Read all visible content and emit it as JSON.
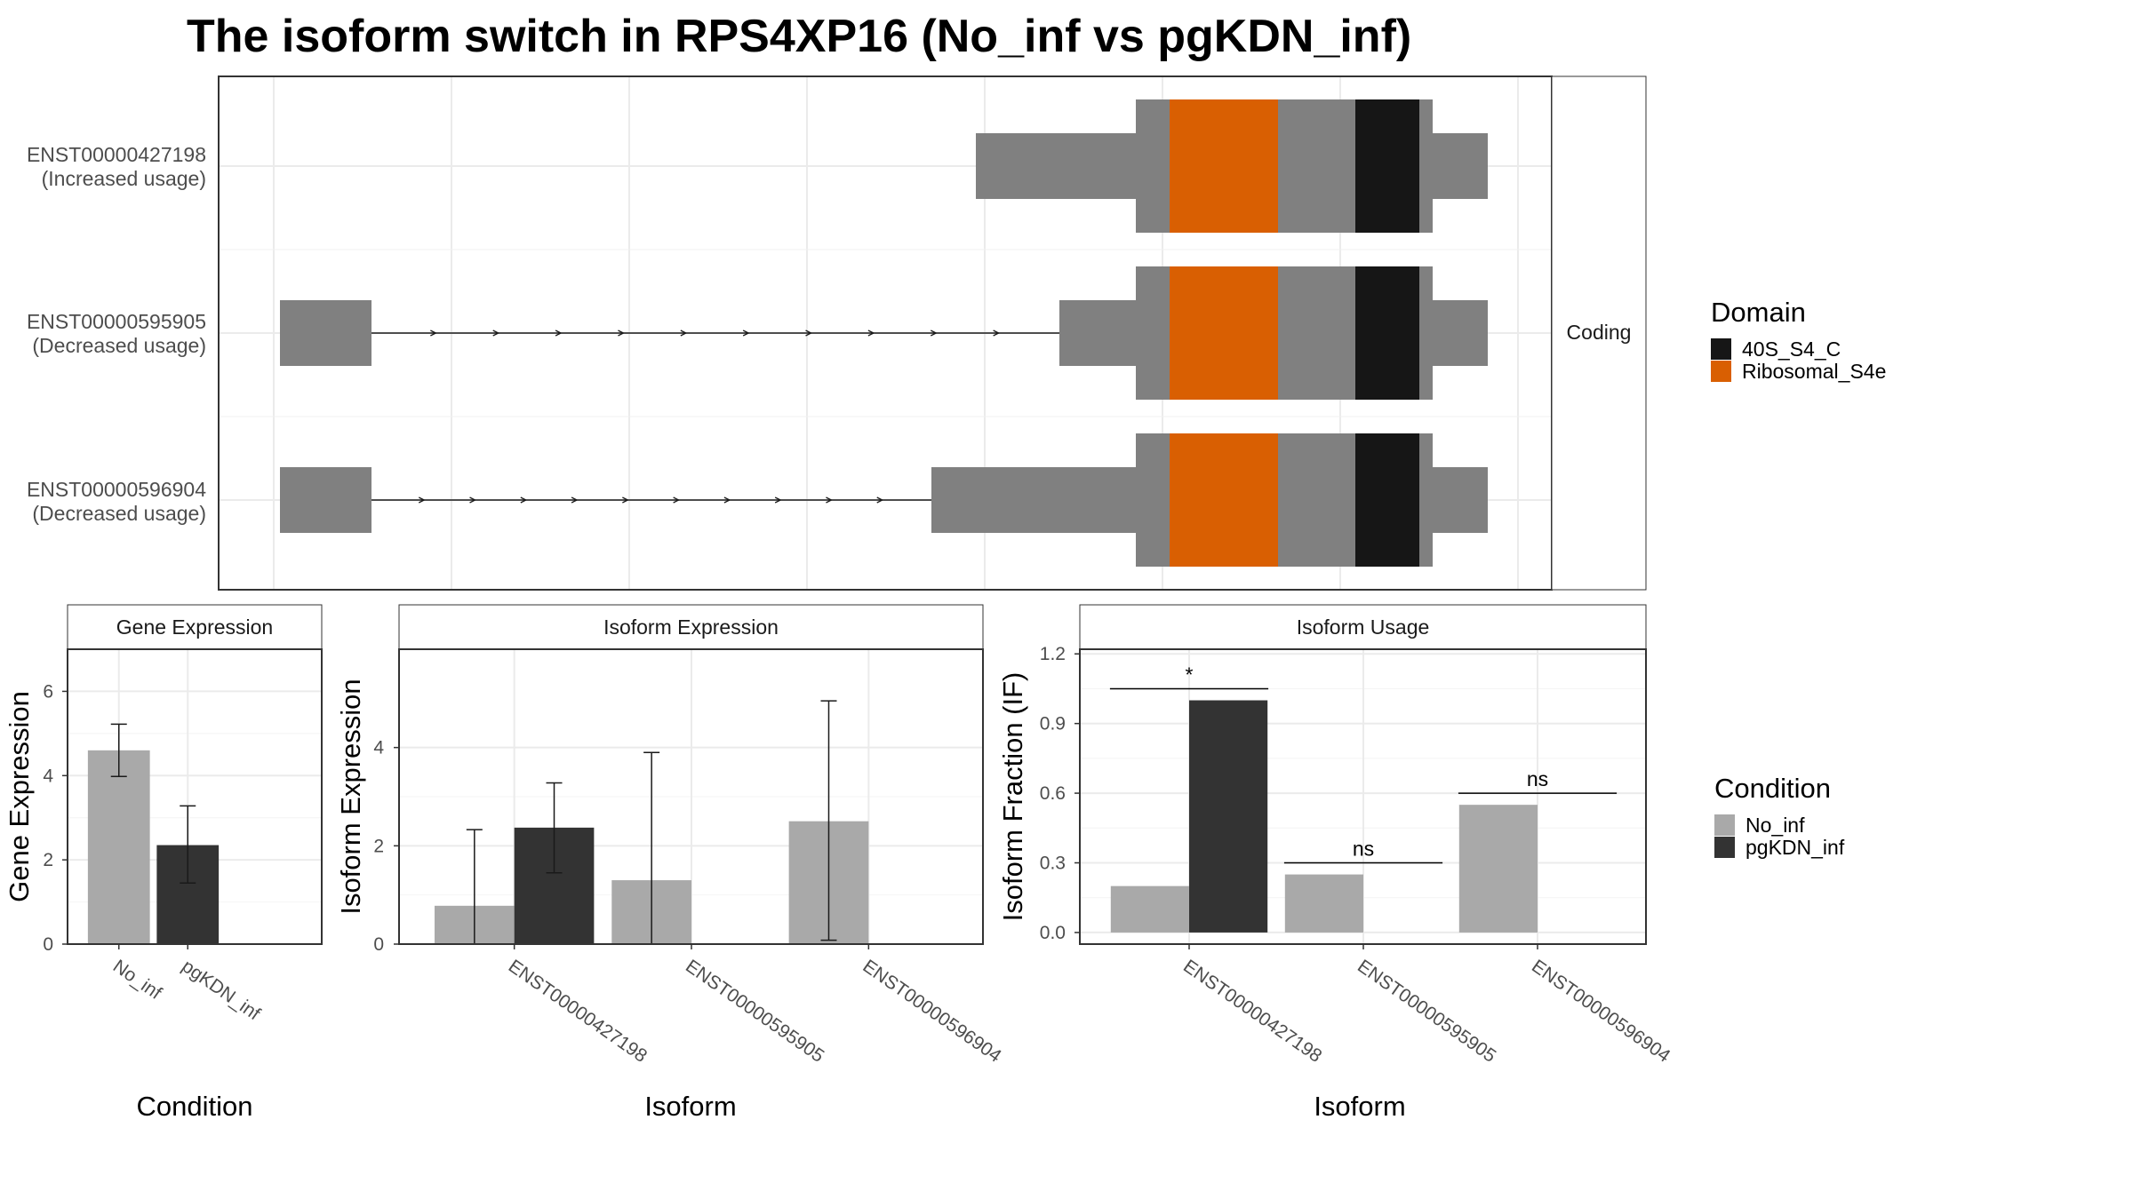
{
  "title": "The isoform switch in RPS4XP16 (No_inf vs pgKDN_inf)",
  "colors": {
    "exon": "#808080",
    "domain_40S_S4_C": "#161616",
    "domain_Ribosomal_S4e": "#d95f02",
    "No_inf": "#a9a9a9",
    "pgKDN_inf": "#333333",
    "grid": "#ebebeb",
    "panel_border": "#333333"
  },
  "transcript_panel": {
    "strip_label": "Coding",
    "isoforms": [
      {
        "id": "ENST00000427198",
        "usage": "(Increased usage)"
      },
      {
        "id": "ENST00000595905",
        "usage": "(Decreased usage)"
      },
      {
        "id": "ENST00000596904",
        "usage": "(Decreased usage)"
      }
    ]
  },
  "legend_domain": {
    "title": "Domain",
    "items": [
      {
        "label": "40S_S4_C",
        "color": "#161616"
      },
      {
        "label": "Ribosomal_S4e",
        "color": "#d95f02"
      }
    ]
  },
  "legend_condition": {
    "title": "Condition",
    "items": [
      {
        "label": "No_inf",
        "color": "#a9a9a9"
      },
      {
        "label": "pgKDN_inf",
        "color": "#333333"
      }
    ]
  },
  "chart_data": [
    {
      "type": "bar",
      "strip": "Gene Expression",
      "xlabel": "Condition",
      "ylabel": "Gene Expression",
      "ylim": [
        0,
        7
      ],
      "yticks": [
        "0",
        "2",
        "4",
        "6"
      ],
      "categories": [
        "No_inf",
        "pgKDN_inf"
      ],
      "values": [
        4.6,
        2.35
      ],
      "error_low": [
        3.98,
        1.45
      ],
      "error_high": [
        5.22,
        3.28
      ],
      "grid": true
    },
    {
      "type": "bar",
      "strip": "Isoform Expression",
      "xlabel": "Isoform",
      "ylabel": "Isoform Expression",
      "ylim": [
        0,
        6
      ],
      "yticks": [
        "0",
        "2",
        "4"
      ],
      "categories": [
        "ENST00000427198",
        "ENST00000595905",
        "ENST00000596904"
      ],
      "series": [
        {
          "name": "No_inf",
          "values": [
            0.78,
            1.3,
            2.5
          ],
          "error_low": [
            0,
            0,
            0.08
          ],
          "error_high": [
            2.33,
            3.9,
            4.95
          ]
        },
        {
          "name": "pgKDN_inf",
          "values": [
            2.37,
            0,
            0
          ],
          "error_low": [
            1.45,
            0,
            0
          ],
          "error_high": [
            3.28,
            0,
            0
          ]
        }
      ],
      "grid": true
    },
    {
      "type": "bar",
      "strip": "Isoform Usage",
      "xlabel": "Isoform",
      "ylabel": "Isoform Fraction (IF)",
      "ylim": [
        -0.05,
        1.22
      ],
      "yticks": [
        "0.0",
        "0.3",
        "0.6",
        "0.9",
        "1.2"
      ],
      "categories": [
        "ENST00000427198",
        "ENST00000595905",
        "ENST00000596904"
      ],
      "series": [
        {
          "name": "No_inf",
          "values": [
            0.2,
            0.25,
            0.55
          ]
        },
        {
          "name": "pgKDN_inf",
          "values": [
            1.0,
            0,
            0
          ]
        }
      ],
      "significance": [
        "*",
        "ns",
        "ns"
      ],
      "significance_y": [
        1.05,
        0.3,
        0.6
      ],
      "grid": true
    }
  ]
}
